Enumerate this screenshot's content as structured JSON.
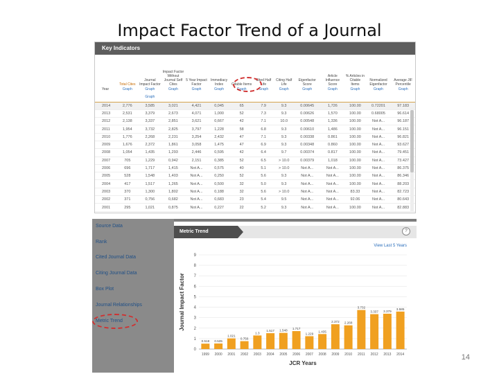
{
  "slide": {
    "title": "Impact Factor Trend of a Journal",
    "page_number": "14"
  },
  "key_indicators": {
    "header": "Key Indicators",
    "columns": [
      {
        "label": "Year",
        "link": ""
      },
      {
        "label": "Total Cites",
        "link": "Graph"
      },
      {
        "label": "Journal Impact Factor",
        "link": "Graph"
      },
      {
        "label": "Impact Factor Without Journal Self Cites",
        "link": "Graph"
      },
      {
        "label": "5 Year Impact Factor",
        "link": "Graph"
      },
      {
        "label": "Immediacy Index",
        "link": "Graph"
      },
      {
        "label": "Citable Items",
        "link": "Graph"
      },
      {
        "label": "Cited Half Life",
        "link": "Graph"
      },
      {
        "label": "Citing Half Life",
        "link": "Graph"
      },
      {
        "label": "Eigenfactor Score",
        "link": "Graph"
      },
      {
        "label": "Article Influence Score",
        "link": "Graph"
      },
      {
        "label": "% Articles in Citable Items",
        "link": "Graph"
      },
      {
        "label": "Normalized Eigenfactor",
        "link": "Graph"
      },
      {
        "label": "Average JIF Percentile",
        "link": "Graph"
      }
    ],
    "graph_link": "Graph",
    "rows": [
      [
        "2014",
        "2,776",
        "3,585",
        "3,021",
        "4,421",
        "0,045",
        "65",
        "7.9",
        "9.3",
        "0.00645",
        "1,726",
        "100.00",
        "0.72201",
        "97.183"
      ],
      [
        "2013",
        "2,531",
        "3,379",
        "2,673",
        "4,071",
        "1,000",
        "52",
        "7.3",
        "9.3",
        "0.00626",
        "1,570",
        "100.00",
        "0.68005",
        "96.614"
      ],
      [
        "2012",
        "2,138",
        "3,337",
        "2,851",
        "3,621",
        "0,667",
        "42",
        "7.1",
        "10.0",
        "0.00548",
        "1,336",
        "100.00",
        "Not A...",
        "96.187"
      ],
      [
        "2011",
        "1,954",
        "3,732",
        "2,825",
        "3,797",
        "1,228",
        "58",
        "6.8",
        "9.3",
        "0.00610",
        "1,486",
        "100.00",
        "Not A...",
        "96.151"
      ],
      [
        "2010",
        "1,776",
        "2,268",
        "2,231",
        "3,254",
        "2,432",
        "47",
        "7.1",
        "9.3",
        "0.00338",
        "0.861",
        "100.00",
        "Not A...",
        "96.821"
      ],
      [
        "2009",
        "1,676",
        "2,372",
        "1,861",
        "3,058",
        "1,475",
        "47",
        "6.9",
        "9.3",
        "0.00348",
        "0.860",
        "100.00",
        "Not A...",
        "93.627"
      ],
      [
        "2008",
        "1,054",
        "1,435",
        "1,293",
        "2,446",
        "0,595",
        "42",
        "6.4",
        "9.7",
        "0.00374",
        "0.817",
        "100.00",
        "Not A...",
        "79.451"
      ],
      [
        "2007",
        "705",
        "1,229",
        "0,942",
        "2,151",
        "0,385",
        "52",
        "6.5",
        "> 10.0",
        "0.00379",
        "1,018",
        "100.00",
        "Not A...",
        "73.427"
      ],
      [
        "2006",
        "696",
        "1,717",
        "1,415",
        "Not A...",
        "0,575",
        "40",
        "5.1",
        "> 10.0",
        "Not A...",
        "Not A...",
        "100.00",
        "Not A...",
        "86.375"
      ],
      [
        "2005",
        "528",
        "1,548",
        "1,403",
        "Not A...",
        "0,250",
        "52",
        "5.6",
        "9.3",
        "Not A...",
        "Not A...",
        "100.00",
        "Not A...",
        "86.346"
      ],
      [
        "2004",
        "417",
        "1,517",
        "1,265",
        "Not A...",
        "0,500",
        "32",
        "5.0",
        "9.3",
        "Not A...",
        "Not A...",
        "100.00",
        "Not A...",
        "88.203"
      ],
      [
        "2003",
        "370",
        "1,300",
        "1,802",
        "Not A...",
        "0,188",
        "32",
        "5.6",
        "> 10.0",
        "Not A...",
        "Not A...",
        "83.33",
        "Not A...",
        "82.723"
      ],
      [
        "2002",
        "371",
        "0,756",
        "0,682",
        "Not A...",
        "0,683",
        "23",
        "5.4",
        "9.5",
        "Not A...",
        "Not A...",
        "92.06",
        "Not A...",
        "80.643"
      ],
      [
        "2001",
        "295",
        "1,021",
        "0,875",
        "Not A...",
        "0,227",
        "22",
        "5.2",
        "9.3",
        "Not A...",
        "Not A...",
        "100.00",
        "Not A...",
        "82.883"
      ],
      [
        "1999",
        "274",
        "0,518",
        "0,677",
        "Not A...",
        "0,378",
        "23",
        "5.6",
        "8.5",
        "Not A...",
        "Not A...",
        "100.00",
        "Not A...",
        "73.641"
      ]
    ]
  },
  "side_menu": {
    "items": [
      "Source Data",
      "Rank",
      "Cited Journal Data",
      "Citing Journal Data",
      "Box Plot",
      "Journal Relationships",
      "Metric Trend"
    ]
  },
  "metric_panel": {
    "tab": "Metric Trend",
    "help": "?",
    "view_link": "View Last 5 Years"
  },
  "chart_data": {
    "type": "bar",
    "title": "",
    "xlabel": "JCR Years",
    "ylabel": "Journal Impact Factor",
    "ylim": [
      0,
      9
    ],
    "yticks": [
      0,
      1,
      2,
      3,
      4,
      5,
      6,
      7,
      8,
      9
    ],
    "categories": [
      "1999",
      "2000",
      "2001",
      "2002",
      "2003",
      "2004",
      "2005",
      "2006",
      "2007",
      "2008",
      "2009",
      "2010",
      "2011",
      "2012",
      "2013",
      "2014"
    ],
    "values": [
      0.518,
      0.535,
      1.021,
      0.756,
      1.3,
      1.517,
      1.548,
      1.717,
      1.229,
      1.435,
      2.372,
      2.268,
      3.732,
      3.337,
      3.379,
      3.585
    ],
    "data_labels": [
      "0.518",
      "0.535",
      "1.021",
      "0.756",
      "1.3",
      "1.517",
      "1.548",
      "1.717",
      "1.229",
      "1.435",
      "2.372",
      "2.268",
      "3.732",
      "3.337",
      "3.379",
      "3.585"
    ],
    "bar_color": "#f0a020",
    "grid": true
  }
}
